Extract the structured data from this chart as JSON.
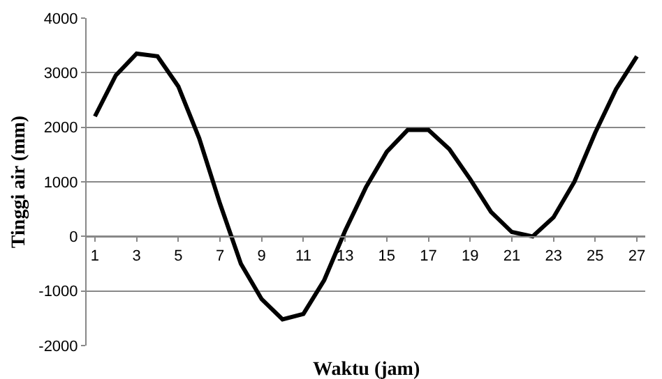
{
  "chart_data": {
    "type": "line",
    "xlabel": "Waktu (jam)",
    "ylabel": "Tinggi air (mm)",
    "x": [
      1,
      2,
      3,
      4,
      5,
      6,
      7,
      8,
      9,
      10,
      11,
      12,
      13,
      14,
      15,
      16,
      17,
      18,
      19,
      20,
      21,
      22,
      23,
      24,
      25,
      26,
      27
    ],
    "xlim": [
      0.6,
      27.4
    ],
    "xticks": [
      1,
      3,
      5,
      7,
      9,
      11,
      13,
      15,
      17,
      19,
      21,
      23,
      25,
      27
    ],
    "series": [
      {
        "color": "#000000",
        "values": [
          2200,
          2950,
          3350,
          3300,
          2750,
          1800,
          600,
          -500,
          -1150,
          -1520,
          -1420,
          -800,
          100,
          900,
          1550,
          1950,
          1950,
          1600,
          1050,
          450,
          80,
          0,
          350,
          1000,
          1900,
          2700,
          3300
        ]
      }
    ],
    "ylim": [
      -2000,
      4000
    ],
    "yticks": [
      -2000,
      -1000,
      0,
      1000,
      2000,
      3000,
      4000
    ],
    "grid": "y",
    "legend": false,
    "marker": "none",
    "line_style": "solid"
  }
}
